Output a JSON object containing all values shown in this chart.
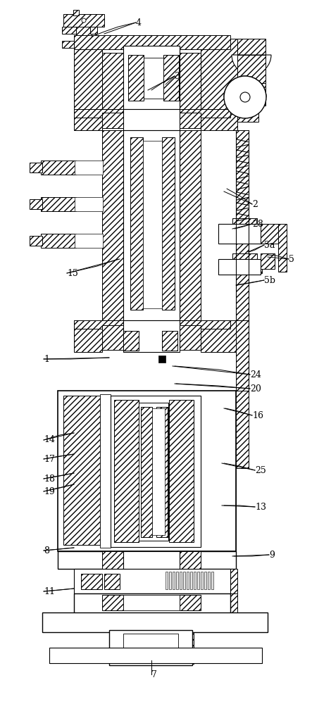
{
  "background_color": "#ffffff",
  "line_color": "#1a1a1a",
  "figsize": [
    4.43,
    10.0
  ],
  "dpi": 100,
  "label_positions": {
    "4": [
      193,
      32,
      148,
      48
    ],
    "3": [
      248,
      108,
      210,
      128
    ],
    "2": [
      358,
      290,
      318,
      272
    ],
    "28": [
      358,
      318,
      330,
      325
    ],
    "5a": [
      375,
      348,
      352,
      358
    ],
    "5": [
      410,
      368,
      380,
      365
    ],
    "5b": [
      375,
      398,
      335,
      405
    ],
    "15": [
      95,
      388,
      170,
      368
    ],
    "1": [
      62,
      510,
      155,
      508
    ],
    "24": [
      355,
      532,
      245,
      520
    ],
    "20": [
      355,
      552,
      248,
      545
    ],
    "16": [
      358,
      590,
      318,
      580
    ],
    "14": [
      62,
      625,
      105,
      615
    ],
    "17": [
      62,
      652,
      105,
      645
    ],
    "18": [
      62,
      680,
      105,
      672
    ],
    "19": [
      62,
      698,
      105,
      688
    ],
    "25": [
      362,
      668,
      315,
      658
    ],
    "13": [
      362,
      720,
      315,
      718
    ],
    "9": [
      382,
      788,
      330,
      790
    ],
    "8": [
      62,
      782,
      105,
      778
    ],
    "11": [
      62,
      840,
      105,
      836
    ],
    "7": [
      215,
      958,
      215,
      938
    ]
  }
}
